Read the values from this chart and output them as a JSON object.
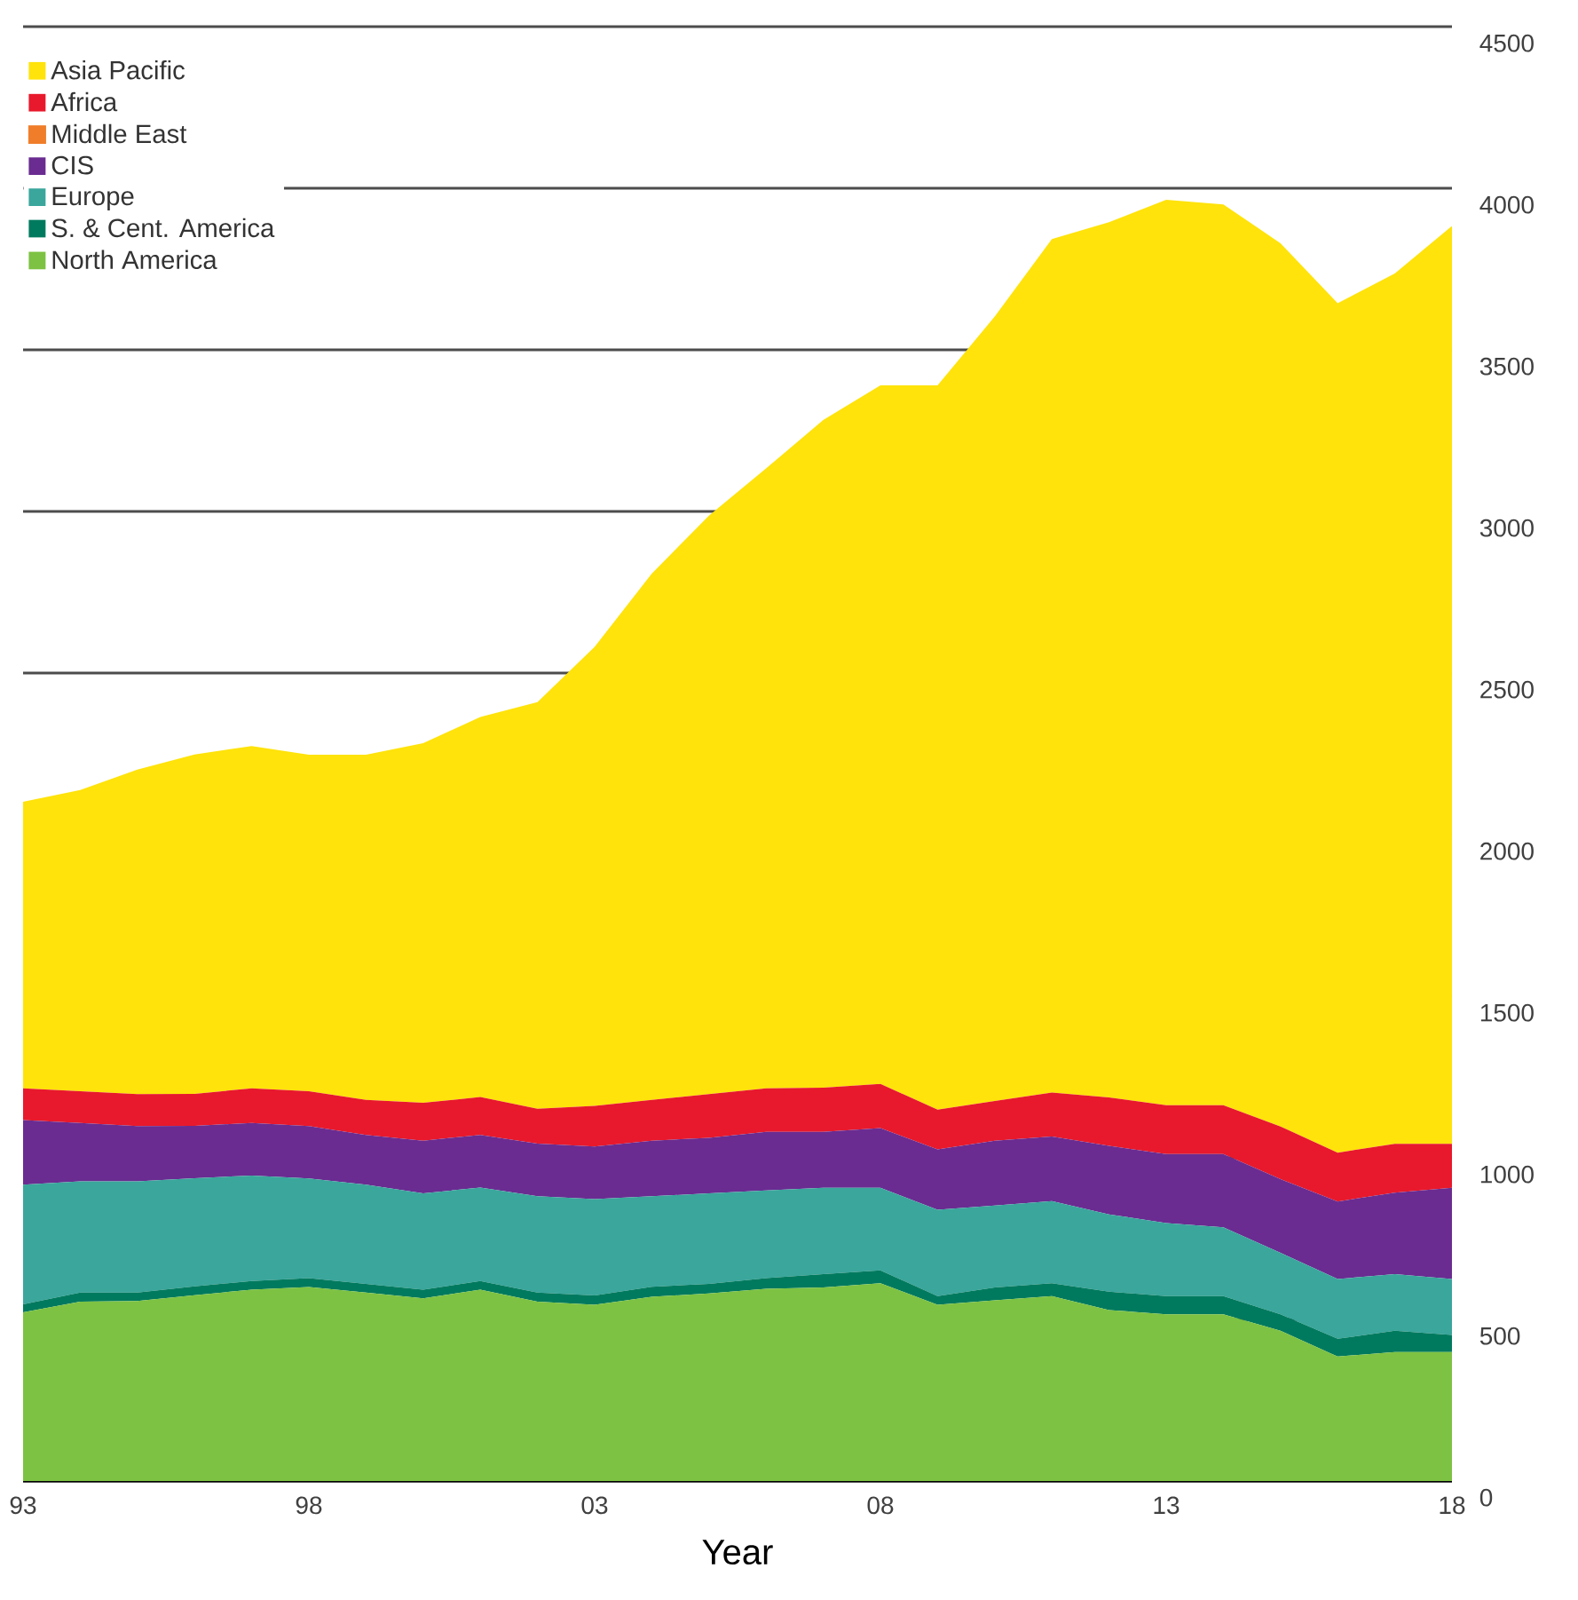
{
  "chart_data": {
    "type": "area",
    "stacked": true,
    "xlabel": "Year",
    "legend": "top left",
    "grid": "y",
    "x": [
      1993,
      1994,
      1995,
      1996,
      1997,
      1998,
      1999,
      2000,
      2001,
      2002,
      2003,
      2004,
      2005,
      2006,
      2007,
      2008,
      2009,
      2010,
      2011,
      2012,
      2013,
      2014,
      2015,
      2016,
      2017,
      2018
    ],
    "xlim": [
      1993,
      2018
    ],
    "xticks": [
      {
        "value": 1993,
        "label": "93"
      },
      {
        "value": 1998,
        "label": "98"
      },
      {
        "value": 2003,
        "label": "03"
      },
      {
        "value": 2008,
        "label": "08"
      },
      {
        "value": 2013,
        "label": "13"
      },
      {
        "value": 2018,
        "label": "18"
      }
    ],
    "ylim": [
      0,
      4500
    ],
    "yticks": [
      0,
      500,
      1000,
      1500,
      2000,
      2500,
      3000,
      3500,
      4000,
      4500
    ],
    "series": [
      {
        "name": "North America",
        "color": "#7dc242",
        "values": [
          522,
          555,
          557,
          575,
          592,
          600,
          583,
          565,
          592,
          555,
          545,
          570,
          580,
          595,
          599,
          612,
          545,
          559,
          572,
          529,
          516,
          516,
          465,
          385,
          399,
          399
        ]
      },
      {
        "name": "S. & Cent. America",
        "color": "#007a5e",
        "values": [
          25,
          28,
          26,
          27,
          27,
          28,
          27,
          27,
          27,
          28,
          29,
          31,
          30,
          33,
          41,
          40,
          27,
          40,
          40,
          57,
          56,
          56,
          51,
          55,
          66,
          53
        ]
      },
      {
        "name": "Europe",
        "color": "#3aa69c",
        "values": [
          370,
          344,
          344,
          335,
          326,
          308,
          307,
          298,
          289,
          298,
          298,
          280,
          280,
          271,
          267,
          255,
          267,
          253,
          254,
          239,
          226,
          213,
          190,
          185,
          175,
          173
        ]
      },
      {
        "name": "CIS",
        "color": "#6a2c91",
        "values": [
          200,
          181,
          171,
          162,
          163,
          162,
          154,
          163,
          163,
          163,
          163,
          172,
          172,
          181,
          173,
          185,
          187,
          201,
          200,
          212,
          214,
          227,
          228,
          240,
          252,
          282
        ]
      },
      {
        "name": "Middle East",
        "color": "#f07d2a",
        "values": [
          null,
          null,
          null,
          null,
          null,
          null,
          null,
          null,
          null,
          null,
          null,
          null,
          null,
          null,
          null,
          null,
          null,
          null,
          null,
          null,
          null,
          null,
          null,
          null,
          null,
          null
        ]
      },
      {
        "name": "Africa",
        "color": "#e8192c",
        "values": [
          98,
          98,
          99,
          99,
          107,
          108,
          108,
          117,
          117,
          108,
          126,
          126,
          135,
          135,
          137,
          137,
          123,
          123,
          136,
          150,
          151,
          151,
          163,
          151,
          151,
          136
        ]
      },
      {
        "name": "Asia Pacific",
        "color": "#ffe30a",
        "values": [
          887,
          932,
          1004,
          1050,
          1059,
          1041,
          1068,
          1113,
          1176,
          1258,
          1420,
          1629,
          1790,
          1918,
          2066,
          2161,
          2241,
          2427,
          2641,
          2708,
          2801,
          2787,
          2733,
          2628,
          2693,
          2840
        ]
      }
    ]
  }
}
